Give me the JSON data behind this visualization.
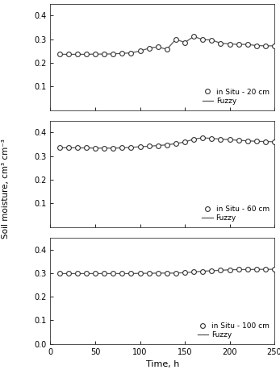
{
  "time": [
    10,
    20,
    30,
    40,
    50,
    60,
    70,
    80,
    90,
    100,
    110,
    120,
    130,
    140,
    150,
    160,
    170,
    180,
    190,
    200,
    210,
    220,
    230,
    240,
    250
  ],
  "depth20_measured": [
    0.236,
    0.236,
    0.236,
    0.236,
    0.237,
    0.237,
    0.238,
    0.24,
    0.242,
    0.25,
    0.262,
    0.268,
    0.257,
    0.3,
    0.286,
    0.312,
    0.298,
    0.297,
    0.283,
    0.28,
    0.278,
    0.278,
    0.273,
    0.272,
    0.272
  ],
  "depth20_fuzzy": [
    0.236,
    0.236,
    0.236,
    0.236,
    0.237,
    0.237,
    0.238,
    0.24,
    0.242,
    0.25,
    0.262,
    0.268,
    0.257,
    0.3,
    0.286,
    0.312,
    0.298,
    0.297,
    0.283,
    0.28,
    0.278,
    0.278,
    0.273,
    0.272,
    0.272
  ],
  "depth60_measured": [
    0.335,
    0.336,
    0.335,
    0.335,
    0.334,
    0.334,
    0.334,
    0.335,
    0.337,
    0.34,
    0.342,
    0.345,
    0.348,
    0.353,
    0.36,
    0.372,
    0.378,
    0.375,
    0.372,
    0.37,
    0.367,
    0.365,
    0.363,
    0.362,
    0.361
  ],
  "depth60_fuzzy": [
    0.335,
    0.336,
    0.335,
    0.335,
    0.334,
    0.334,
    0.334,
    0.335,
    0.337,
    0.34,
    0.342,
    0.345,
    0.348,
    0.353,
    0.36,
    0.372,
    0.378,
    0.375,
    0.372,
    0.37,
    0.367,
    0.365,
    0.363,
    0.362,
    0.361
  ],
  "depth100_measured": [
    0.298,
    0.298,
    0.298,
    0.298,
    0.298,
    0.298,
    0.298,
    0.298,
    0.298,
    0.299,
    0.299,
    0.3,
    0.3,
    0.3,
    0.302,
    0.305,
    0.308,
    0.31,
    0.312,
    0.314,
    0.315,
    0.315,
    0.316,
    0.316,
    0.316
  ],
  "depth100_fuzzy": [
    0.298,
    0.298,
    0.298,
    0.298,
    0.298,
    0.298,
    0.298,
    0.298,
    0.298,
    0.299,
    0.299,
    0.3,
    0.3,
    0.3,
    0.302,
    0.305,
    0.308,
    0.31,
    0.312,
    0.314,
    0.315,
    0.315,
    0.316,
    0.316,
    0.316
  ],
  "xlim": [
    0,
    250
  ],
  "ylim": [
    0,
    0.45
  ],
  "yticks_top": [
    0.1,
    0.2,
    0.3,
    0.4
  ],
  "yticks_bottom": [
    0,
    0.1,
    0.2,
    0.3,
    0.4
  ],
  "xticks": [
    0,
    50,
    100,
    150,
    200,
    250
  ],
  "xlabel": "Time, h",
  "ylabel": "Soil moisture, cm³ cm⁻³",
  "legend20": [
    "in Situ - 20 cm",
    "Fuzzy"
  ],
  "legend60": [
    "in Situ - 60 cm",
    "Fuzzy"
  ],
  "legend100": [
    "in Situ - 100 cm",
    "Fuzzy"
  ],
  "line_color": "#555555",
  "marker_facecolor": "white",
  "marker_edgecolor": "#333333",
  "spine_color": "#333333"
}
